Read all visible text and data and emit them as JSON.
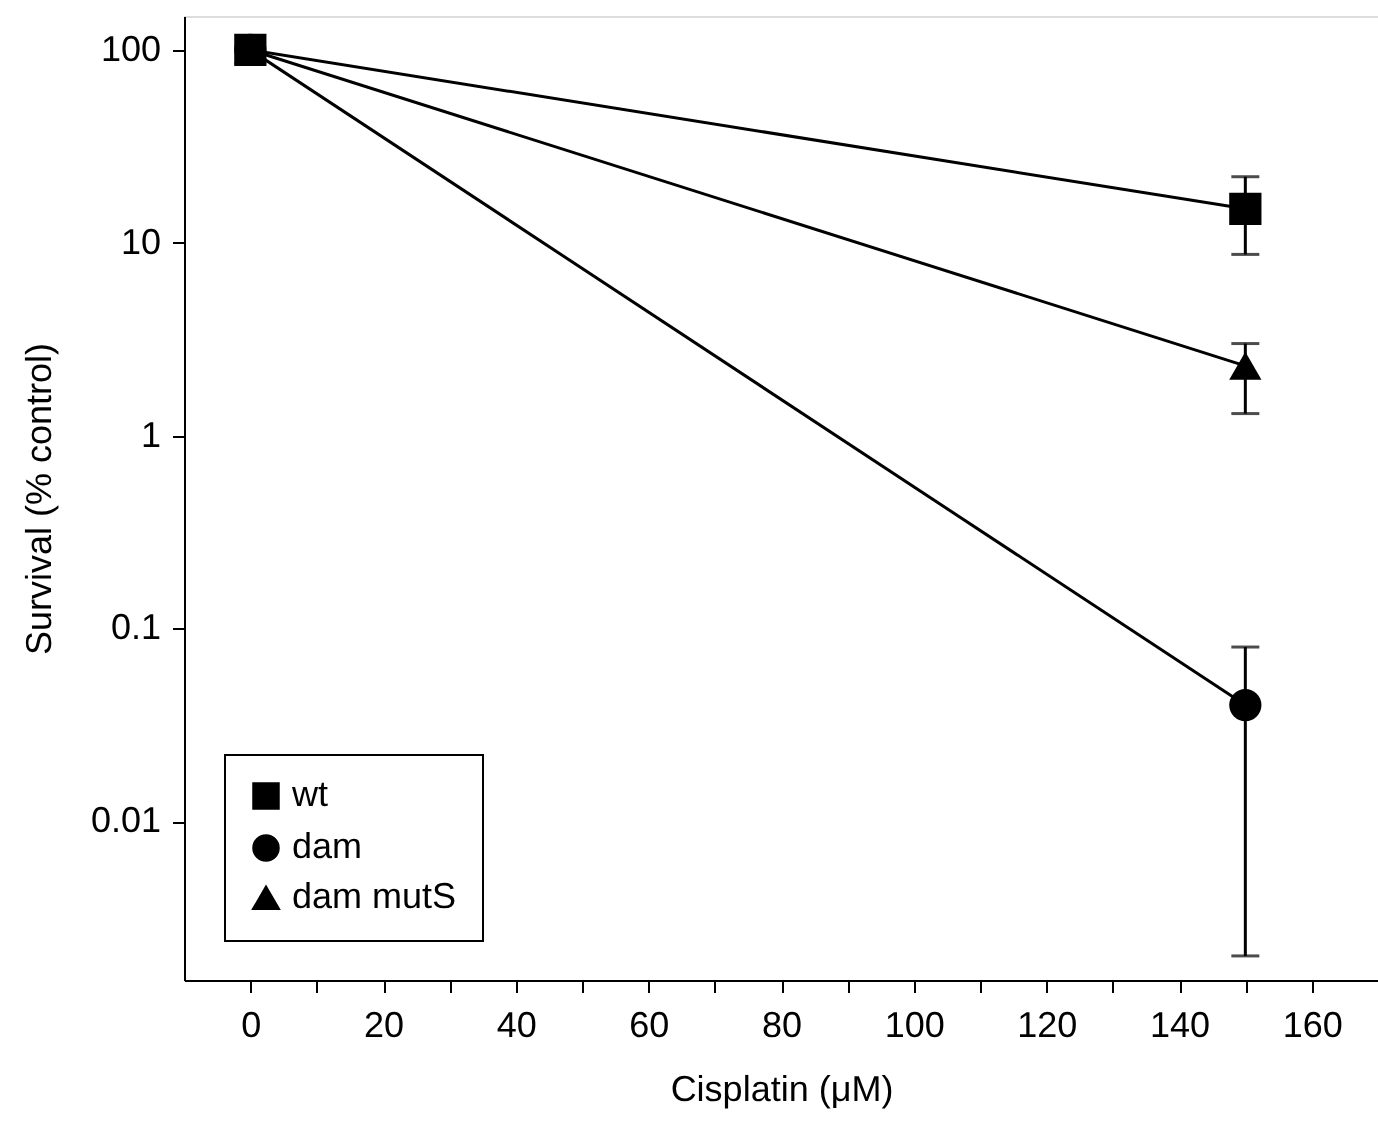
{
  "chart_data": {
    "type": "line",
    "xlabel": "Cisplatin (μM)",
    "ylabel": "Survival (% control)",
    "x": [
      0,
      150
    ],
    "log": "y",
    "grid": false,
    "legend": "bottom left",
    "line_style": "solid",
    "xlim": [
      -10,
      170
    ],
    "ylim": [
      0.0015,
      150
    ],
    "xticks": [
      0,
      {
        "value": 10,
        "label": null
      },
      20,
      {
        "value": 30,
        "label": null
      },
      40,
      {
        "value": 50,
        "label": null
      },
      60,
      {
        "value": 70,
        "label": null
      },
      80,
      {
        "value": 90,
        "label": null
      },
      100,
      {
        "value": 110,
        "label": null
      },
      120,
      {
        "value": 130,
        "label": null
      },
      140,
      {
        "value": 150,
        "label": null
      },
      160
    ],
    "yticks": [
      0.01,
      0.1,
      1,
      10,
      100
    ],
    "series": [
      {
        "name": "wt",
        "color": "#000000",
        "marker": "square",
        "values": [
          100,
          15
        ],
        "errors": [
          null,
          [
            8.7,
            22
          ]
        ]
      },
      {
        "name": "dam",
        "color": "#000000",
        "marker": "circle",
        "values": [
          100,
          0.04
        ],
        "errors": [
          null,
          [
            0.002,
            0.08
          ]
        ]
      },
      {
        "name": "dam mutS",
        "color": "#000000",
        "marker": "triangle",
        "values": [
          100,
          2.3
        ],
        "errors": [
          null,
          [
            1.3,
            3.0
          ]
        ]
      }
    ]
  }
}
